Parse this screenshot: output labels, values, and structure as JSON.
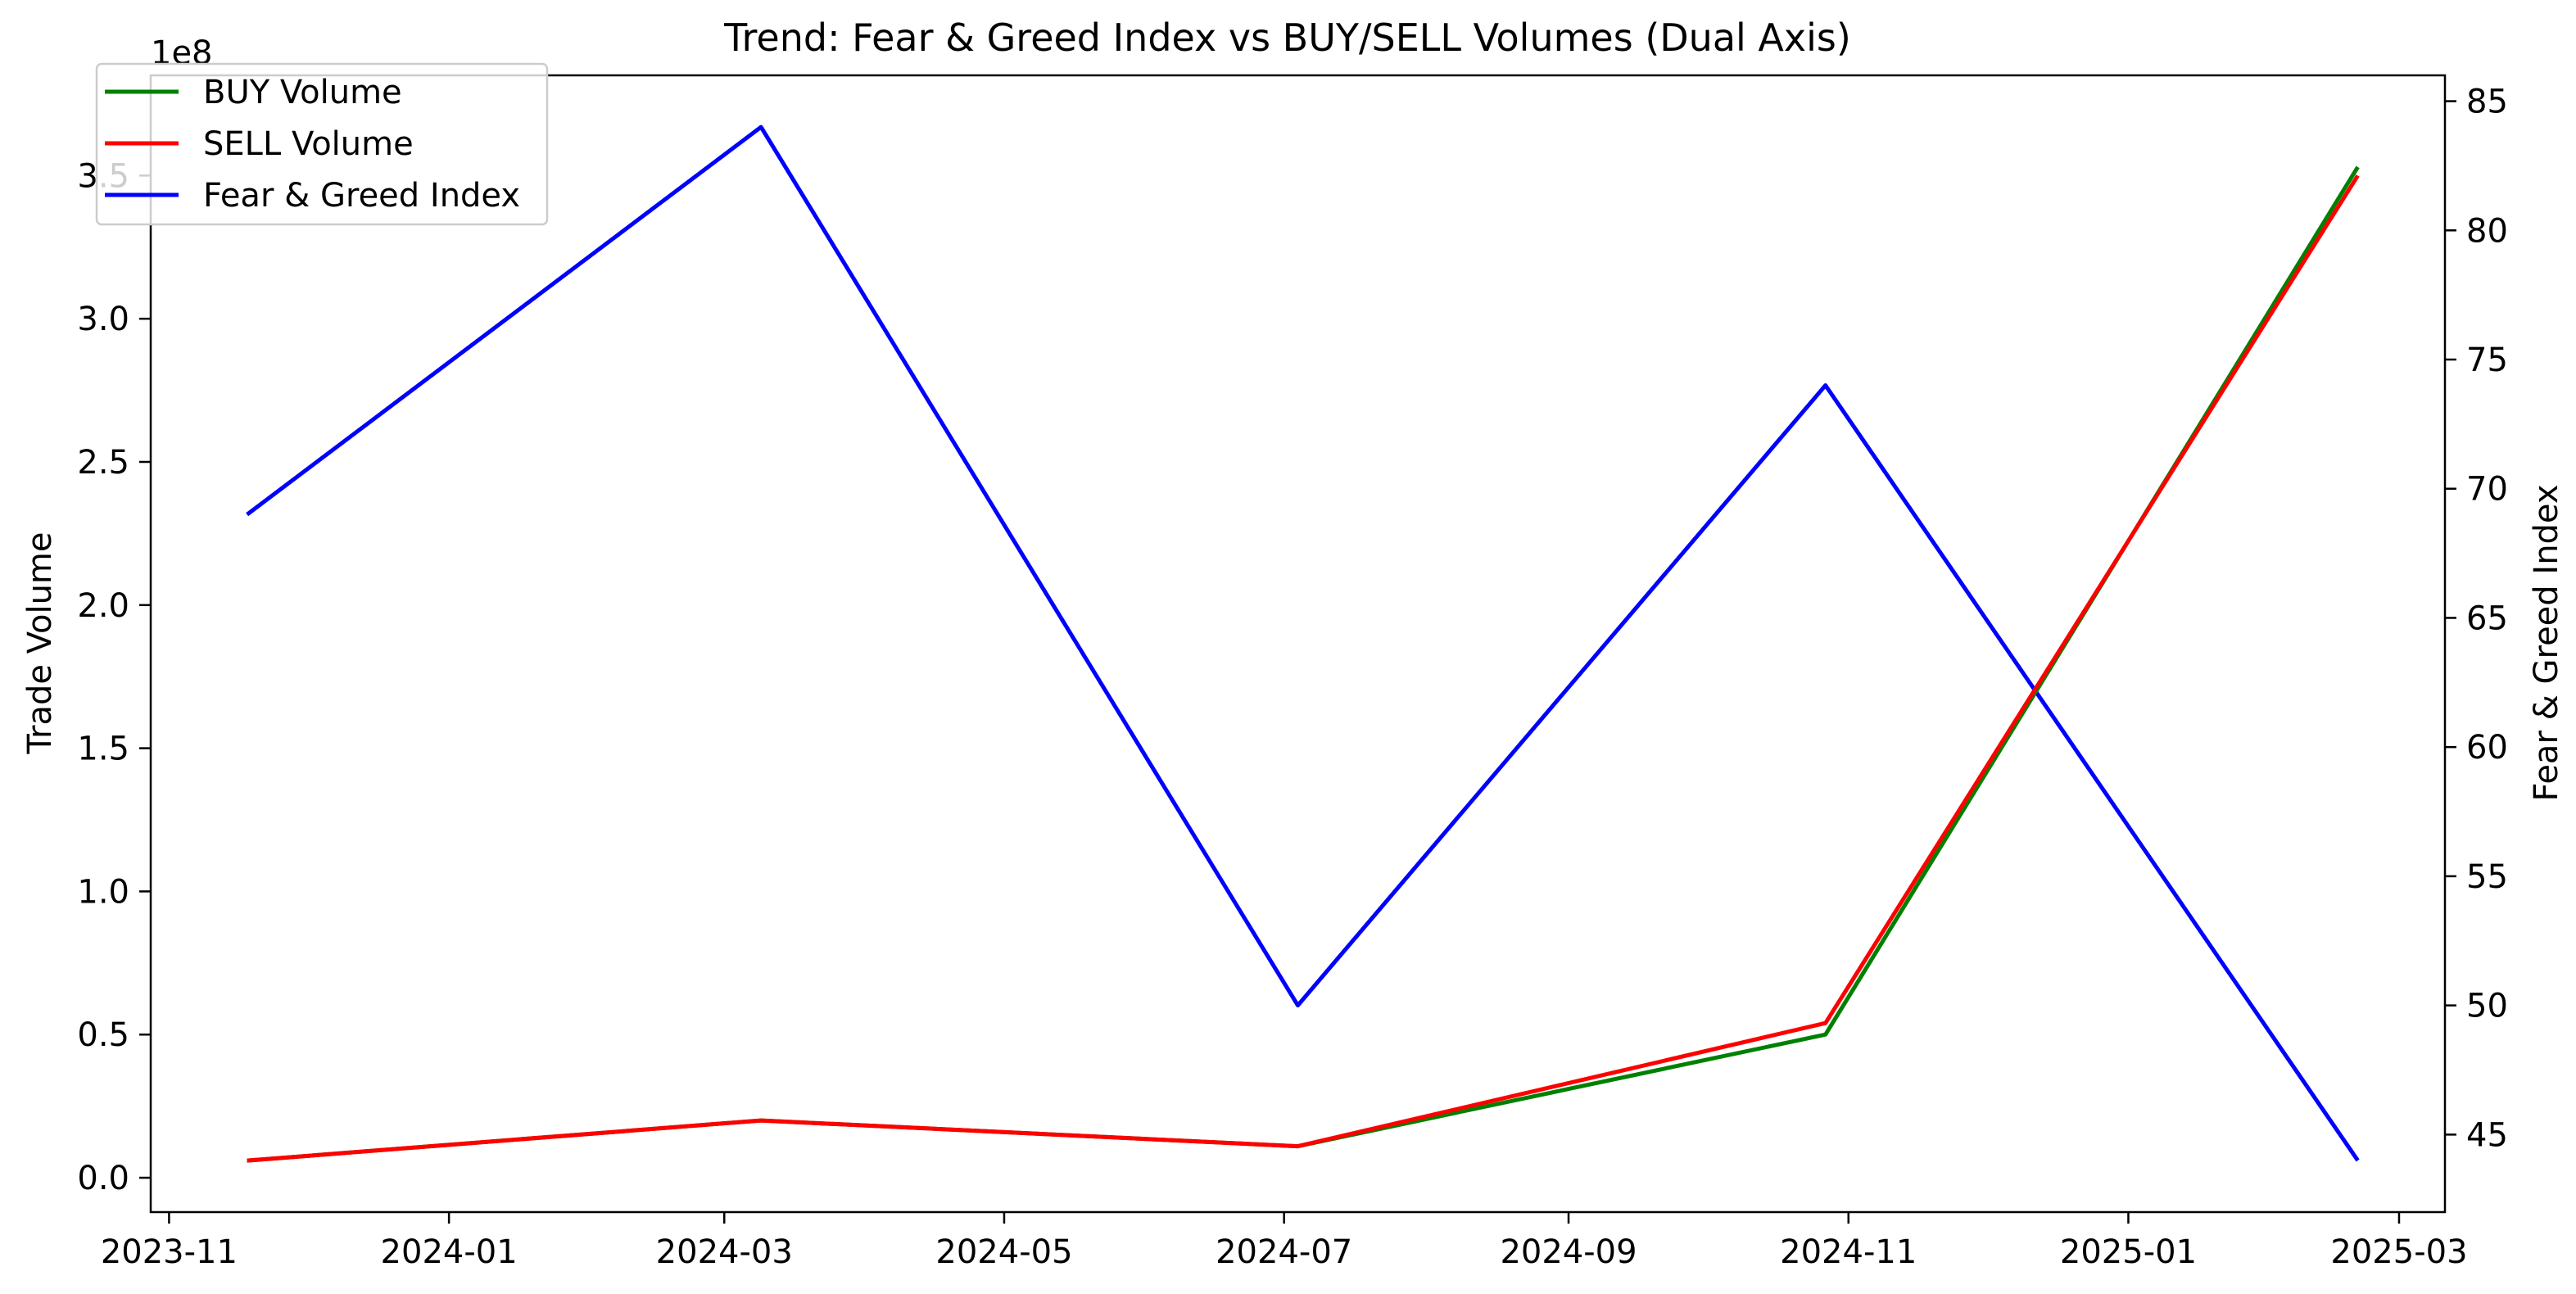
{
  "chart_data": {
    "type": "line",
    "title": "Trend: Fear & Greed Index vs BUY/SELL Volumes (Dual Axis)",
    "xlabel": "",
    "ylabel_left": "Trade Volume",
    "ylabel_right": "Fear & Greed Index",
    "left_axis_multiplier": "1e8",
    "x_dates": [
      "2023-11-18",
      "2024-03-09",
      "2024-07-04",
      "2024-10-27",
      "2025-02-20"
    ],
    "x_tick_labels": [
      "2023-11",
      "2024-01",
      "2024-03",
      "2024-05",
      "2024-07",
      "2024-09",
      "2024-11",
      "2025-01",
      "2025-03"
    ],
    "x_tick_dates": [
      "2023-11-01",
      "2024-01-01",
      "2024-03-01",
      "2024-05-01",
      "2024-07-01",
      "2024-09-01",
      "2024-11-01",
      "2025-01-01",
      "2025-03-01"
    ],
    "xlim": [
      "2023-10-28",
      "2025-03-11"
    ],
    "left_ylim": [
      -0.12,
      3.85
    ],
    "left_ticks": [
      0.0,
      0.5,
      1.0,
      1.5,
      2.0,
      2.5,
      3.0,
      3.5
    ],
    "left_tick_labels": [
      "0.0",
      "0.5",
      "1.0",
      "1.5",
      "2.0",
      "2.5",
      "3.0",
      "3.5"
    ],
    "right_ylim": [
      42.0,
      86.0
    ],
    "right_ticks": [
      45,
      50,
      55,
      60,
      65,
      70,
      75,
      80,
      85
    ],
    "right_tick_labels": [
      "45",
      "50",
      "55",
      "60",
      "65",
      "70",
      "75",
      "80",
      "85"
    ],
    "series": [
      {
        "name": "BUY Volume",
        "axis": "left",
        "color": "#008000",
        "values": [
          0.06,
          0.2,
          0.11,
          0.5,
          3.53
        ]
      },
      {
        "name": "SELL Volume",
        "axis": "left",
        "color": "#ff0000",
        "values": [
          0.06,
          0.2,
          0.11,
          0.54,
          3.5
        ]
      },
      {
        "name": "Fear & Greed Index",
        "axis": "right",
        "color": "#0000ff",
        "values": [
          69,
          84,
          50,
          74,
          44
        ]
      }
    ],
    "legend_position": "upper-left",
    "grid": false
  }
}
